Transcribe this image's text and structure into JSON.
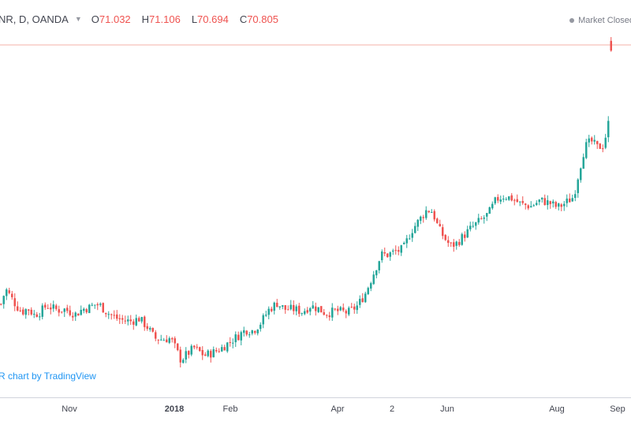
{
  "header": {
    "symbol": "NR, D, OANDA",
    "open_label": "O",
    "open_value": "71.032",
    "high_label": "H",
    "high_value": "71.106",
    "low_label": "L",
    "low_value": "70.694",
    "close_label": "C",
    "close_value": "70.805"
  },
  "status": {
    "market": "Market Closed"
  },
  "watermark": "R chart by TradingView",
  "colors": {
    "up": "#26a69a",
    "down": "#ef5350",
    "price_line": "#f4b0a8",
    "text": "#434651",
    "axis": "#d1d4dc",
    "watermark": "#2196f3"
  },
  "chart_data": {
    "type": "candlestick",
    "instrument": "NR, D, OANDA",
    "x_ticks": [
      {
        "label": "Nov",
        "bold": false
      },
      {
        "label": "2018",
        "bold": true
      },
      {
        "label": "Feb",
        "bold": false
      },
      {
        "label": "Apr",
        "bold": false
      },
      {
        "label": "2",
        "bold": false
      },
      {
        "label": "Jun",
        "bold": false
      },
      {
        "label": "Aug",
        "bold": false
      },
      {
        "label": "Sep",
        "bold": false
      }
    ],
    "last_close": 70.805,
    "approx_range": [
      62.8,
      71.2
    ],
    "grid": false,
    "keypoints": [
      [
        0,
        64.9
      ],
      [
        6,
        65.25
      ],
      [
        13,
        65.05
      ],
      [
        20,
        64.85
      ],
      [
        27,
        64.72
      ],
      [
        34,
        64.8
      ],
      [
        42,
        64.65
      ],
      [
        50,
        64.72
      ],
      [
        58,
        64.87
      ],
      [
        66,
        64.8
      ],
      [
        72,
        64.76
      ],
      [
        80,
        64.78
      ],
      [
        88,
        64.72
      ],
      [
        95,
        64.66
      ],
      [
        103,
        64.78
      ],
      [
        112,
        64.82
      ],
      [
        120,
        64.9
      ],
      [
        126,
        64.86
      ],
      [
        135,
        64.7
      ],
      [
        145,
        64.58
      ],
      [
        155,
        64.52
      ],
      [
        165,
        64.5
      ],
      [
        175,
        64.56
      ],
      [
        185,
        64.38
      ],
      [
        195,
        64.1
      ],
      [
        205,
        64.08
      ],
      [
        215,
        64.1
      ],
      [
        220,
        63.92
      ],
      [
        228,
        63.6
      ],
      [
        235,
        63.72
      ],
      [
        245,
        63.88
      ],
      [
        258,
        63.7
      ],
      [
        270,
        63.78
      ],
      [
        280,
        63.88
      ],
      [
        290,
        64.02
      ],
      [
        300,
        64.15
      ],
      [
        310,
        64.3
      ],
      [
        320,
        64.28
      ],
      [
        330,
        64.48
      ],
      [
        340,
        64.78
      ],
      [
        350,
        64.92
      ],
      [
        360,
        64.78
      ],
      [
        372,
        64.78
      ],
      [
        382,
        64.72
      ],
      [
        392,
        64.86
      ],
      [
        402,
        64.8
      ],
      [
        412,
        64.68
      ],
      [
        425,
        64.74
      ],
      [
        440,
        64.7
      ],
      [
        452,
        64.86
      ],
      [
        462,
        65.15
      ],
      [
        472,
        65.6
      ],
      [
        482,
        66.05
      ],
      [
        490,
        66.05
      ],
      [
        500,
        66.12
      ],
      [
        510,
        66.18
      ],
      [
        520,
        66.6
      ],
      [
        530,
        66.85
      ],
      [
        540,
        67.1
      ],
      [
        547,
        67.06
      ],
      [
        555,
        66.65
      ],
      [
        563,
        66.42
      ],
      [
        570,
        66.25
      ],
      [
        578,
        66.32
      ],
      [
        588,
        66.52
      ],
      [
        598,
        66.7
      ],
      [
        608,
        66.85
      ],
      [
        618,
        67.0
      ],
      [
        628,
        67.34
      ],
      [
        638,
        67.42
      ],
      [
        648,
        67.36
      ],
      [
        660,
        67.22
      ],
      [
        672,
        67.18
      ],
      [
        684,
        67.32
      ],
      [
        696,
        67.25
      ],
      [
        706,
        67.15
      ],
      [
        716,
        67.26
      ],
      [
        726,
        67.4
      ],
      [
        733,
        68.0
      ],
      [
        740,
        68.55
      ],
      [
        748,
        68.7
      ],
      [
        756,
        68.55
      ],
      [
        764,
        68.6
      ],
      [
        770,
        69.1
      ],
      [
        776,
        69.35
      ]
    ]
  }
}
